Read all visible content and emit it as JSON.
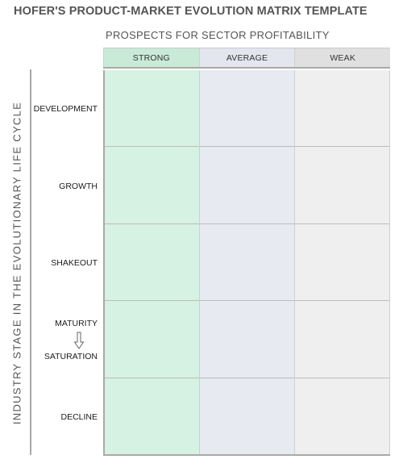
{
  "title": "HOFER'S PRODUCT-MARKET EVOLUTION MATRIX TEMPLATE",
  "x_axis_title": "PROSPECTS FOR SECTOR PROFITABILITY",
  "y_axis_title": "INDUSTRY STAGE IN THE EVOLUTIONARY LIFE CYCLE",
  "columns": [
    "STRONG",
    "AVERAGE",
    "WEAK"
  ],
  "stages": {
    "development": "DEVELOPMENT",
    "growth": "GROWTH",
    "shakeout": "SHAKEOUT",
    "maturity": "MATURITY",
    "saturation": "SATURATION",
    "decline": "DECLINE"
  },
  "colors": {
    "strong": "#d6f2e2",
    "average": "#e8eaf1",
    "weak": "#efefef"
  },
  "icons": {
    "maturity_to_saturation": "arrow-down-icon"
  }
}
